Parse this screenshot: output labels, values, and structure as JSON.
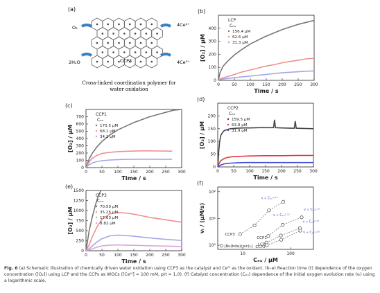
{
  "panel_a": {
    "label": "(a)",
    "o2": "O₂",
    "ce4": "4Ce⁴⁺",
    "h2o": "2H₂O",
    "ce3": "4Ce³⁺",
    "ccp3": "CCP3",
    "title_line1": "Cross-linked coordination polymer for",
    "title_line2": "water oxidation"
  },
  "caption": {
    "fig": "Fig. 6",
    "text": "(a) Schematic illustration of chemically driven water oxidation using CCP3 as the catalyst and Ceᴵⱽ as the oxidant. (b–e) Reaction time (t) dependence of the oxygen concentration ([O₂]) using LCP and the CCPs as WOCs ([Ceᴵⱽ] = 100 mM, pH = 1.0). (f) Catalyst concentration (Cₑᵤ) dependence of the initial oxygen evolution rate (vᵢ) using a logarithmic scale."
  },
  "chart_data": [
    {
      "id": "b",
      "type": "line",
      "panel_label": "(b)",
      "legend_title": "LCP",
      "legend_sub": "Cₑᵤ",
      "xlabel": "Time / s",
      "ylabel": "[O₂] / μM",
      "xlim": [
        0,
        300
      ],
      "ylim": [
        0,
        500
      ],
      "xticks": [
        0,
        50,
        100,
        150,
        200,
        250,
        300
      ],
      "yticks": [
        0,
        100,
        200,
        300,
        400
      ],
      "series": [
        {
          "name": "156.4 μM",
          "color": "#777777",
          "x": [
            0,
            5,
            15,
            30,
            50,
            75,
            100,
            125,
            150,
            175,
            200,
            225,
            250,
            275,
            300
          ],
          "y": [
            0,
            60,
            110,
            150,
            195,
            240,
            280,
            310,
            340,
            365,
            390,
            410,
            430,
            445,
            460
          ]
        },
        {
          "name": "62.6 μM",
          "color": "#ef8f8f",
          "x": [
            0,
            5,
            15,
            30,
            50,
            75,
            100,
            125,
            150,
            175,
            200,
            225,
            250,
            275,
            300
          ],
          "y": [
            0,
            10,
            20,
            30,
            45,
            65,
            80,
            95,
            110,
            120,
            135,
            145,
            155,
            165,
            170
          ]
        },
        {
          "name": "31.3 μM",
          "color": "#a3a7e6",
          "x": [
            0,
            5,
            15,
            30,
            50,
            75,
            100,
            125,
            150,
            175,
            200,
            225,
            250,
            275,
            300
          ],
          "y": [
            0,
            5,
            10,
            15,
            20,
            27,
            33,
            40,
            45,
            52,
            58,
            62,
            66,
            70,
            73
          ]
        }
      ]
    },
    {
      "id": "c",
      "type": "line",
      "panel_label": "(c)",
      "legend_title": "CCP1",
      "legend_sub": "Cₑᵤ",
      "xlabel": "Time / s",
      "ylabel": "[O₂] / μM",
      "xlim": [
        0,
        300
      ],
      "ylim": [
        0,
        800
      ],
      "xticks": [
        0,
        50,
        100,
        150,
        200,
        250,
        300
      ],
      "yticks": [
        0,
        100,
        200,
        300,
        400,
        500,
        600,
        700
      ],
      "series": [
        {
          "name": "170.5 μM",
          "color": "#777777",
          "x": [
            0,
            5,
            10,
            20,
            35,
            50,
            75,
            100,
            125,
            150,
            175,
            200,
            225,
            250,
            275,
            300
          ],
          "y": [
            0,
            60,
            120,
            200,
            290,
            360,
            450,
            520,
            570,
            620,
            660,
            700,
            730,
            760,
            790,
            800
          ]
        },
        {
          "name": "68.1 μM",
          "color": "#ef8f8f",
          "x": [
            0,
            5,
            10,
            20,
            35,
            50,
            75,
            100,
            125,
            150,
            175,
            200,
            225,
            250,
            270
          ],
          "y": [
            0,
            40,
            80,
            130,
            170,
            195,
            210,
            220,
            225,
            228,
            230,
            230,
            229,
            228,
            227
          ]
        },
        {
          "name": "34.1 μM",
          "color": "#a3a7e6",
          "x": [
            0,
            5,
            10,
            20,
            35,
            50,
            75,
            100,
            125,
            150,
            175,
            200,
            225,
            250,
            270
          ],
          "y": [
            0,
            20,
            40,
            65,
            85,
            95,
            105,
            110,
            113,
            115,
            116,
            116,
            115,
            115,
            115
          ]
        }
      ]
    },
    {
      "id": "d",
      "type": "line",
      "panel_label": "(d)",
      "legend_title": "CCP2",
      "legend_sub": "Cₑᵤ",
      "xlabel": "Time / s",
      "ylabel": "[O₂] / μM",
      "xlim": [
        0,
        300
      ],
      "ylim": [
        0,
        250
      ],
      "xticks": [
        0,
        50,
        100,
        150,
        200,
        250,
        300
      ],
      "yticks": [
        0,
        50,
        100,
        150,
        200
      ],
      "series": [
        {
          "name": "159.5 μM",
          "color": "#444444",
          "x": [
            0,
            3,
            6,
            10,
            15,
            20,
            30,
            40,
            60,
            80,
            100,
            130,
            160,
            175,
            178,
            181,
            200,
            230,
            240,
            243,
            246,
            270,
            300
          ],
          "y": [
            0,
            60,
            100,
            125,
            135,
            142,
            147,
            150,
            152,
            153,
            153,
            154,
            154,
            154,
            185,
            154,
            153,
            152,
            152,
            180,
            152,
            151,
            150
          ]
        },
        {
          "name": "63.8 μM",
          "color": "#e23b3b",
          "x": [
            0,
            5,
            10,
            20,
            30,
            40,
            60,
            80,
            100,
            150,
            200,
            250,
            300
          ],
          "y": [
            0,
            15,
            25,
            33,
            37,
            39,
            41,
            42,
            43,
            44,
            44,
            45,
            45
          ]
        },
        {
          "name": "31.9 μM",
          "color": "#3c4fd6",
          "x": [
            0,
            5,
            10,
            20,
            30,
            40,
            60,
            80,
            100,
            150,
            200,
            250,
            300
          ],
          "y": [
            0,
            5,
            8,
            12,
            14,
            15,
            16,
            17,
            17,
            17,
            17,
            17,
            17
          ]
        }
      ]
    },
    {
      "id": "e",
      "type": "line",
      "panel_label": "(e)",
      "legend_title": "CCP3",
      "legend_sub": "Cₑᵤ",
      "xlabel": "Time / s",
      "ylabel": "[O₂] / μM",
      "xlim": [
        0,
        300
      ],
      "ylim": [
        0,
        1500
      ],
      "xticks": [
        0,
        50,
        100,
        150,
        200,
        250,
        300
      ],
      "yticks": [
        0,
        250,
        500,
        750,
        1000,
        1250,
        1500
      ],
      "series": [
        {
          "name": "70.50 μM",
          "color": "#777777",
          "x": [
            0,
            5,
            10,
            20,
            30,
            40,
            47
          ],
          "y": [
            0,
            250,
            500,
            850,
            1150,
            1400,
            1500
          ]
        },
        {
          "name": "35.25 μM",
          "color": "#ef8f8f",
          "x": [
            0,
            10,
            20,
            35,
            50,
            75,
            100,
            125,
            150,
            175,
            200,
            225,
            250,
            275,
            300
          ],
          "y": [
            0,
            150,
            350,
            600,
            780,
            920,
            950,
            940,
            910,
            870,
            830,
            800,
            770,
            740,
            710
          ]
        },
        {
          "name": "17.63 μM",
          "color": "#a3a7e6",
          "x": [
            0,
            10,
            20,
            35,
            50,
            75,
            100,
            125,
            150,
            175,
            200,
            225,
            250,
            275,
            300
          ],
          "y": [
            0,
            50,
            120,
            220,
            300,
            370,
            390,
            380,
            360,
            340,
            320,
            300,
            285,
            270,
            255
          ]
        },
        {
          "name": "8.82 μM",
          "color": "#d8a5d8",
          "x": [
            0,
            10,
            20,
            35,
            50,
            75,
            100,
            125,
            150,
            175,
            200,
            225,
            250,
            275,
            300
          ],
          "y": [
            0,
            20,
            50,
            90,
            120,
            140,
            145,
            140,
            135,
            130,
            125,
            120,
            115,
            110,
            105
          ]
        }
      ]
    },
    {
      "id": "f",
      "type": "scatter",
      "panel_label": "(f)",
      "xlabel": "Cₑᵤ / μM",
      "ylabel": "vᵢ / (μM/s)",
      "xscale": "log",
      "yscale": "log",
      "xlim": [
        3,
        300
      ],
      "ylim": [
        0.7,
        150
      ],
      "xticks": [
        10,
        100
      ],
      "yticks": [
        1,
        10,
        100
      ],
      "xtick_labels": [
        "10",
        "100"
      ],
      "ytick_labels": [
        "10⁰",
        "10¹",
        "10²"
      ],
      "series": [
        {
          "name": "CCP3",
          "color": "#444444",
          "x": [
            8.82,
            17.63,
            35.25,
            70.5
          ],
          "y": [
            2.6,
            5.5,
            20,
            42
          ],
          "fit_label": "v ∝ Cₑᵤ¹·⁴⁷"
        },
        {
          "name": "CCP1",
          "color": "#444444",
          "x": [
            34.1,
            68.1,
            170.5
          ],
          "y": [
            2.2,
            5.8,
            11
          ],
          "fit_label": "v ∝ Cₑᵤ¹·⁰⁷"
        },
        {
          "name": "LCP",
          "color": "#444444",
          "x": [
            31.3,
            62.6,
            156.4
          ],
          "y": [
            1.25,
            2.3,
            4.3
          ],
          "fit_label": "v ∝ Cₑᵤ⁰·⁹⁷"
        },
        {
          "name": "CCP2",
          "color": "#444444",
          "x": [
            31.9,
            63.8,
            159.5
          ],
          "y": [
            1.0,
            1.6,
            3.5
          ],
          "fit_label": "v ∝ Cₑᵤ⁰·⁹⁰"
        },
        {
          "name": "[Ru(bda)(pic)₂]",
          "color": "#444444",
          "x": [
            3.6
          ],
          "y": [
            0.95
          ],
          "fit_label": ""
        }
      ],
      "extra_fit_label": "v ∝ Cₑᵤ¹·¹¹"
    }
  ]
}
